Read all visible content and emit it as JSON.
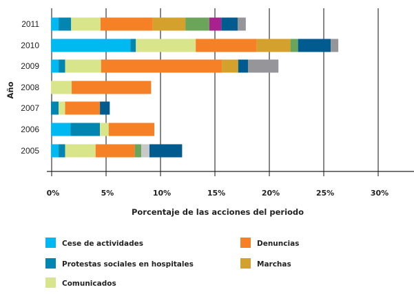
{
  "chart_data": {
    "type": "bar",
    "orientation": "horizontal",
    "stacked": true,
    "xlabel": "Porcentaje de las acciones del periodo",
    "ylabel": "Año",
    "xlim": [
      0,
      30
    ],
    "xticks": [
      "0%",
      "5%",
      "10%",
      "15%",
      "20%",
      "25%",
      "30%"
    ],
    "grid": "vertical",
    "legend": "bottom",
    "categories": [
      "2011",
      "2010",
      "2009",
      "2008",
      "2007",
      "2006",
      "2005"
    ],
    "series": [
      {
        "name": "Cese de actividades",
        "color": "#00b9f1",
        "values": [
          0.7,
          7.3,
          0.7,
          0,
          0,
          1.8,
          0.7
        ]
      },
      {
        "name": "Protestas sociales en hospitales",
        "color": "#0086b0",
        "values": [
          1.15,
          0.5,
          0.6,
          0,
          0.7,
          2.7,
          0.6
        ]
      },
      {
        "name": "Comunicados",
        "color": "#d9e58b",
        "values": [
          2.7,
          5.5,
          3.3,
          1.9,
          0.6,
          0.8,
          2.8
        ]
      },
      {
        "name": "Denuncias",
        "color": "#f68026",
        "values": [
          4.8,
          5.6,
          11.1,
          7.3,
          3.2,
          4.2,
          3.6
        ]
      },
      {
        "name": "Marchas",
        "color": "#d4a12d",
        "values": [
          3.0,
          3.1,
          1.5,
          0,
          0,
          0,
          0
        ]
      },
      {
        "color": "#6aa55a",
        "values": [
          2.2,
          0.7,
          0,
          0,
          0,
          0,
          0.6
        ]
      },
      {
        "color": "#a8218e",
        "values": [
          1.1,
          0,
          0,
          0,
          0,
          0,
          0
        ]
      },
      {
        "color": "#005b8f",
        "values": [
          1.5,
          3.0,
          0.9,
          0,
          0.9,
          0,
          0
        ]
      },
      {
        "color": "#96969a",
        "values": [
          0.75,
          0.7,
          2.8,
          0,
          0,
          0,
          0
        ]
      },
      {
        "color": "#c8c8c8",
        "values": [
          0,
          0,
          0,
          0,
          0,
          0,
          0.75
        ]
      },
      {
        "color": "#005b8f",
        "values": [
          0,
          0,
          0,
          0,
          0,
          0,
          3.0
        ]
      }
    ]
  }
}
